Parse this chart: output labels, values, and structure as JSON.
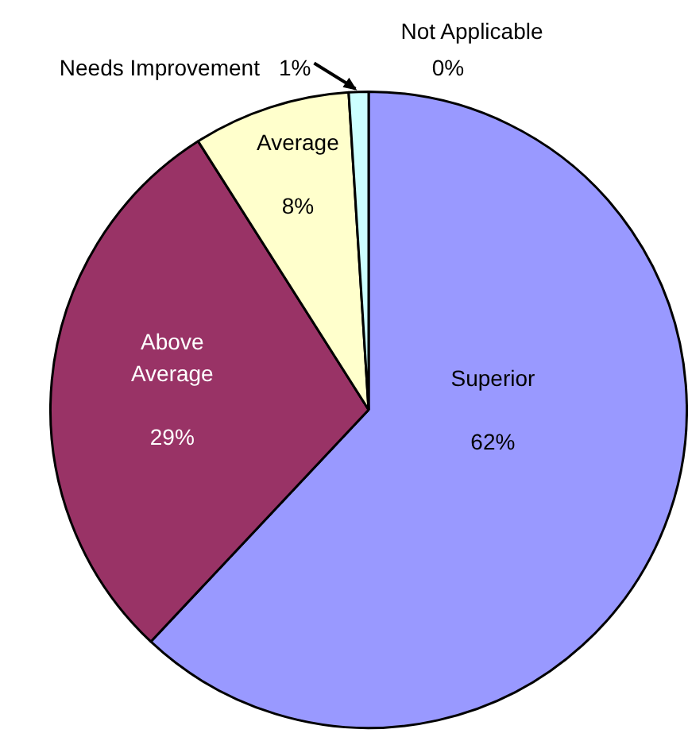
{
  "chart_data": {
    "type": "pie",
    "categories": [
      "Superior",
      "Above Average",
      "Average",
      "Needs Improvement",
      "Not Applicable"
    ],
    "values": [
      62,
      29,
      8,
      1,
      0
    ],
    "colors": [
      "#9999ff",
      "#993366",
      "#ffffcc",
      "#ccffff",
      "#660066"
    ],
    "value_labels": [
      "62%",
      "29%",
      "8%",
      "1%",
      "0%"
    ],
    "legend": false
  }
}
